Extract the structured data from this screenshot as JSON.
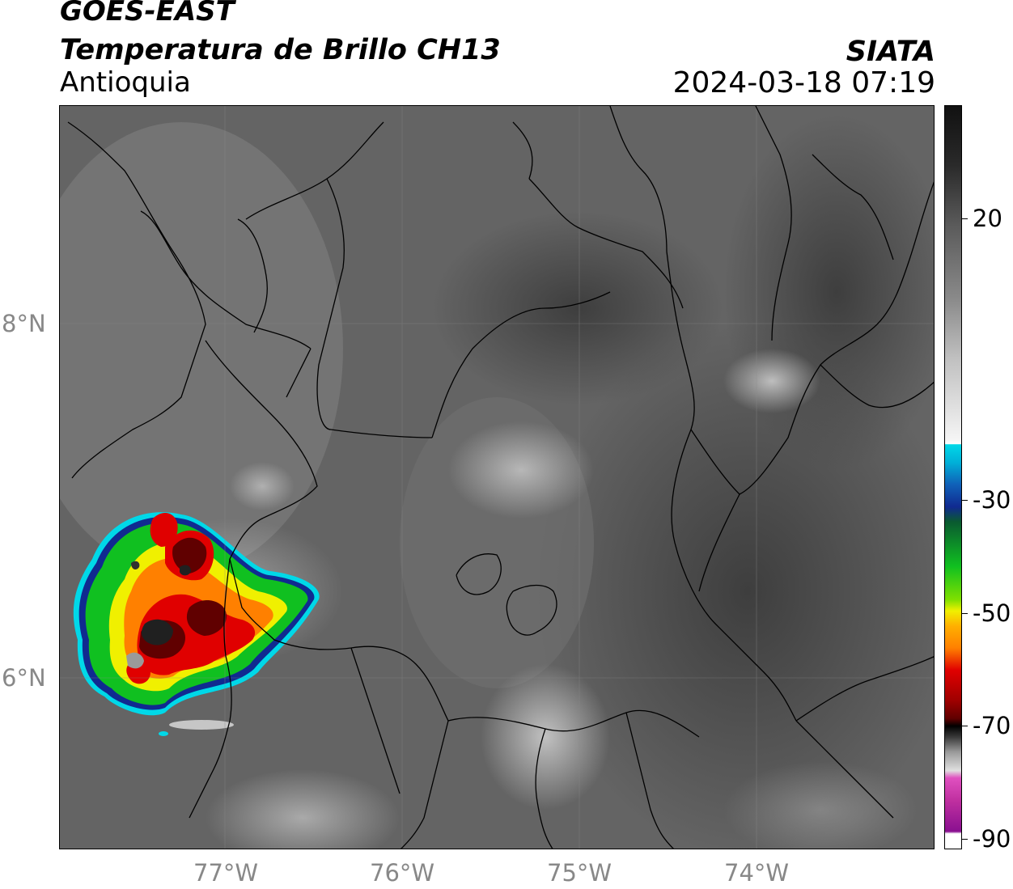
{
  "header": {
    "line1": "GOES-EAST",
    "line2": "Temperatura de Brillo CH13",
    "line3": "Antioquia",
    "org": "SIATA",
    "datetime": "2024-03-18 07:19"
  },
  "axes": {
    "lon_labels": [
      "77°W",
      "76°W",
      "75°W",
      "74°W"
    ],
    "lat_labels": [
      "8°N",
      "6°N"
    ]
  },
  "colorbar": {
    "ticks": [
      "20",
      "-30",
      "-50",
      "-70",
      "-90"
    ],
    "colors": {
      "warm_gray_top": "#111111",
      "light": "#f5f5f5",
      "cyan": "#00d8e8",
      "blue": "#102a90",
      "green": "#10c020",
      "yellow": "#f0f000",
      "orange": "#ff8000",
      "red": "#e00000",
      "dark_red": "#600000",
      "black": "#000000",
      "pink": "#e050c0",
      "purple": "#8a1090"
    }
  }
}
